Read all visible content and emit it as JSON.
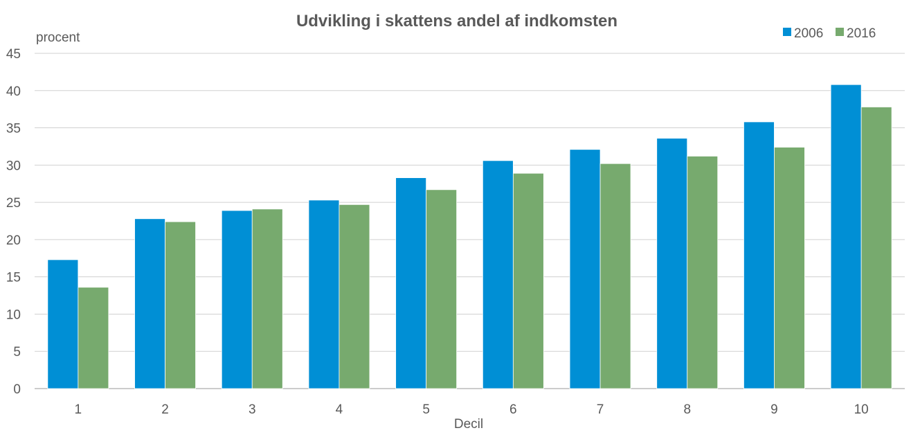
{
  "chart_data": {
    "type": "bar",
    "title": "Udvikling i skattens andel af indkomsten",
    "ylabel": "procent",
    "xlabel": "Decil",
    "ylim": [
      0,
      45
    ],
    "yticks": [
      0,
      5,
      10,
      15,
      20,
      25,
      30,
      35,
      40,
      45
    ],
    "grid": true,
    "legend_position": "top-right",
    "categories": [
      "1",
      "2",
      "3",
      "4",
      "5",
      "6",
      "7",
      "8",
      "9",
      "10"
    ],
    "series": [
      {
        "name": "2006",
        "color": "#008FD5",
        "values": [
          17.3,
          22.8,
          23.9,
          25.3,
          28.3,
          30.6,
          32.1,
          33.6,
          35.8,
          40.8
        ]
      },
      {
        "name": "2016",
        "color": "#77AA6E",
        "values": [
          13.6,
          22.4,
          24.1,
          24.7,
          26.7,
          28.9,
          30.2,
          31.2,
          32.4,
          37.8
        ]
      }
    ]
  }
}
